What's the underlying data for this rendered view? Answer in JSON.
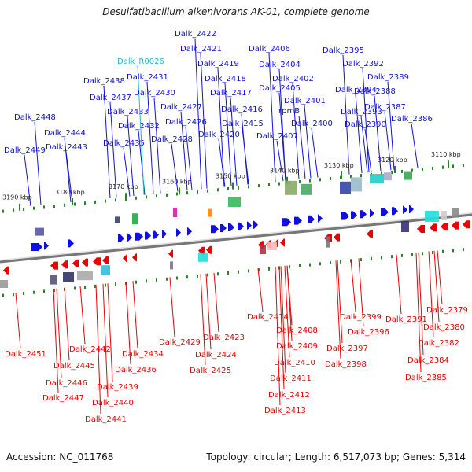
{
  "title": "Desulfatibacillum alkenivorans AK-01, complete genome",
  "footer": {
    "accession": "Accession: NC_011768",
    "summary": "Topology: circular; Length: 6,517,073 bp; Genes: 5,314"
  },
  "colors": {
    "forward_gene": "#1010dd",
    "reverse_gene": "#ee0000",
    "rna_gene": "#22bbcc",
    "backbone": "#777777",
    "tick": "#228822"
  },
  "scale_labels": [
    "3190 kbp",
    "3180 kbp",
    "3170 kbp",
    "3160 kbp",
    "3150 kbp",
    "3140 kbp",
    "3130 kbp",
    "3120 kbp",
    "3110 kbp"
  ],
  "top_labels": [
    {
      "text": "Dalk_2448",
      "kind": "gene"
    },
    {
      "text": "Dalk_2449",
      "kind": "gene"
    },
    {
      "text": "Dalk_2444",
      "kind": "gene"
    },
    {
      "text": "Dalk_2443",
      "kind": "gene"
    },
    {
      "text": "Dalk_2438",
      "kind": "gene"
    },
    {
      "text": "Dalk_2437",
      "kind": "gene"
    },
    {
      "text": "Dalk_2433",
      "kind": "gene"
    },
    {
      "text": "Dalk_2432",
      "kind": "gene"
    },
    {
      "text": "Dalk_2435",
      "kind": "gene"
    },
    {
      "text": "Dalk_R0026",
      "kind": "rna"
    },
    {
      "text": "Dalk_2431",
      "kind": "gene"
    },
    {
      "text": "Dalk_2430",
      "kind": "gene"
    },
    {
      "text": "Dalk_2427",
      "kind": "gene"
    },
    {
      "text": "Dalk_2426",
      "kind": "gene"
    },
    {
      "text": "Dalk_2428",
      "kind": "gene"
    },
    {
      "text": "Dalk_2422",
      "kind": "gene"
    },
    {
      "text": "Dalk_2421",
      "kind": "gene"
    },
    {
      "text": "Dalk_2419",
      "kind": "gene"
    },
    {
      "text": "Dalk_2418",
      "kind": "gene"
    },
    {
      "text": "Dalk_2417",
      "kind": "gene"
    },
    {
      "text": "Dalk_2416",
      "kind": "gene"
    },
    {
      "text": "Dalk_2415",
      "kind": "gene"
    },
    {
      "text": "Dalk_2420",
      "kind": "gene"
    },
    {
      "text": "Dalk_2406",
      "kind": "gene"
    },
    {
      "text": "Dalk_2404",
      "kind": "gene"
    },
    {
      "text": "Dalk_2402",
      "kind": "gene"
    },
    {
      "text": "Dalk_2405",
      "kind": "gene"
    },
    {
      "text": "Dalk_2401",
      "kind": "gene"
    },
    {
      "text": "rpmB",
      "kind": "gene"
    },
    {
      "text": "Dalk_2400",
      "kind": "gene"
    },
    {
      "text": "Dalk_2407",
      "kind": "gene"
    },
    {
      "text": "Dalk_2395",
      "kind": "gene"
    },
    {
      "text": "Dalk_2392",
      "kind": "gene"
    },
    {
      "text": "Dalk_2394",
      "kind": "gene"
    },
    {
      "text": "Dalk_2393",
      "kind": "gene"
    },
    {
      "text": "Dalk_2389",
      "kind": "gene"
    },
    {
      "text": "Dalk_2388",
      "kind": "gene"
    },
    {
      "text": "Dalk_2387",
      "kind": "gene"
    },
    {
      "text": "Dalk_2390",
      "kind": "gene"
    },
    {
      "text": "Dalk_2386",
      "kind": "gene"
    }
  ],
  "bottom_labels": [
    "Dalk_2451",
    "Dalk_2442",
    "Dalk_2445",
    "Dalk_2446",
    "Dalk_2447",
    "Dalk_2434",
    "Dalk_2436",
    "Dalk_2439",
    "Dalk_2440",
    "Dalk_2441",
    "Dalk_2429",
    "Dalk_2423",
    "Dalk_2424",
    "Dalk_2425",
    "Dalk_2414",
    "Dalk_2408",
    "Dalk_2409",
    "Dalk_2410",
    "Dalk_2411",
    "Dalk_2412",
    "Dalk_2413",
    "Dalk_2399",
    "Dalk_2396",
    "Dalk_2397",
    "Dalk_2398",
    "Dalk_2391",
    "Dalk_2379",
    "Dalk_2380",
    "Dalk_2382",
    "Dalk_2384",
    "Dalk_2385"
  ]
}
